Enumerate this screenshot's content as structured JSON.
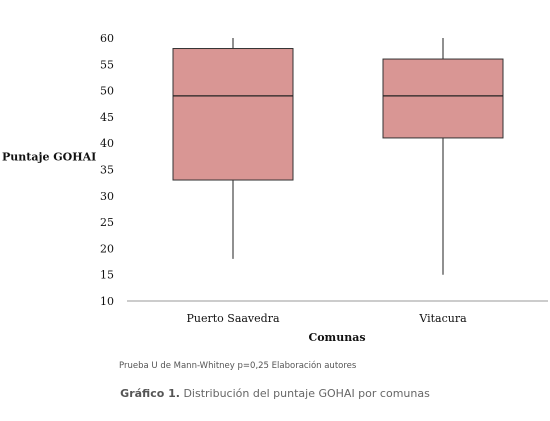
{
  "chart_data": {
    "type": "box",
    "ylabel": "Puntaje GOHAI",
    "xlabel": "Comunas",
    "ylim": [
      10,
      60
    ],
    "yticks": [
      10,
      15,
      20,
      25,
      30,
      35,
      40,
      45,
      50,
      55,
      60
    ],
    "categories": [
      "Puerto Saavedra",
      "Vitacura"
    ],
    "boxes": [
      {
        "category": "Puerto Saavedra",
        "min": 18,
        "q1": 33,
        "median": 49,
        "q3": 58,
        "max": 60
      },
      {
        "category": "Vitacura",
        "min": 15,
        "q1": 41,
        "median": 49,
        "q3": 56,
        "max": 60
      }
    ],
    "colors": {
      "box_fill": "#d99694",
      "box_stroke": "#333333",
      "axis": "#999999"
    }
  },
  "note": "Prueba U de Mann-Whitney p=0,25 Elaboración autores",
  "caption": {
    "label": "Gráfico 1.",
    "text": "Distribución del puntaje GOHAI por comunas"
  }
}
